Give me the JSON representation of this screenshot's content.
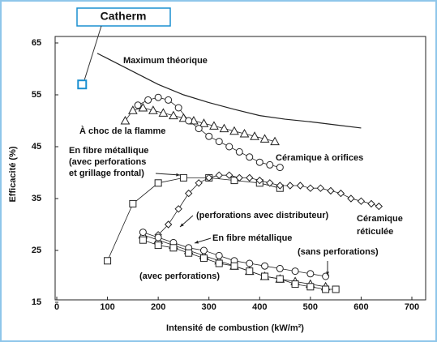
{
  "chart_data": {
    "type": "line",
    "x_label": "Intensité de combustion (kW/m²)",
    "y_label": "Efficacité  (%)",
    "xlim": [
      0,
      700
    ],
    "xticks": [
      0,
      100,
      200,
      300,
      400,
      500,
      600,
      700
    ],
    "ylim": [
      15,
      65
    ],
    "yticks": [
      15,
      25,
      35,
      45,
      55,
      65
    ],
    "highlight": {
      "name": "Catherm",
      "color": "#1a8fd0",
      "x": 50,
      "y": 57
    },
    "annotations": [
      "Maximum théorique",
      "À choc de la flamme",
      "Céramique à orifices",
      "En fibre métallique",
      "(avec perforations",
      "et grillage frontal)",
      "(perforations avec distributeur)",
      "En fibre métallique",
      "(sans perforations)",
      "(avec perforations)",
      "Céramique",
      "réticulée"
    ],
    "series": [
      {
        "marker": "none",
        "color": "#222",
        "x": [
          80,
          100,
          150,
          200,
          250,
          300,
          350,
          400,
          450,
          500,
          550,
          600
        ],
        "values": [
          63,
          62,
          59.5,
          57,
          55,
          53.5,
          52.2,
          51,
          50.3,
          49.8,
          49.2,
          48.6
        ]
      },
      {
        "marker": "triangle",
        "color": "#222",
        "x": [
          135,
          150,
          170,
          190,
          210,
          230,
          250,
          270,
          290,
          310,
          330,
          350,
          370,
          390,
          410,
          430
        ],
        "values": [
          50,
          52,
          52.5,
          52,
          51.5,
          51,
          50.5,
          50,
          49.5,
          49,
          48.5,
          48,
          47.5,
          47,
          46.5,
          46
        ]
      },
      {
        "marker": "circle",
        "color": "#222",
        "x": [
          160,
          180,
          200,
          220,
          240,
          260,
          280,
          300,
          320,
          340,
          360,
          380,
          400,
          420,
          440
        ],
        "values": [
          53,
          54,
          54.5,
          54,
          52.5,
          50,
          48.5,
          47,
          46,
          45,
          44,
          43,
          42,
          41.5,
          41
        ]
      },
      {
        "marker": "square",
        "color": "#222",
        "x": [
          100,
          150,
          200,
          250,
          300,
          350,
          400,
          440
        ],
        "values": [
          23,
          34,
          38,
          39,
          39,
          38.5,
          38,
          37
        ]
      },
      {
        "marker": "diamond",
        "color": "#222",
        "x": [
          200,
          220,
          240,
          260,
          280,
          300,
          320,
          340,
          360,
          380,
          400,
          420,
          440,
          460,
          480,
          500,
          520,
          540,
          560,
          580,
          600,
          620,
          635
        ],
        "values": [
          28,
          30,
          33,
          36,
          38,
          39,
          39.5,
          39.5,
          39,
          39,
          38.5,
          38,
          37.5,
          37.5,
          37.5,
          37,
          37,
          36.5,
          36,
          35,
          34.5,
          34,
          33.5
        ]
      },
      {
        "marker": "triangle",
        "color": "#222",
        "x": [
          170,
          200,
          230,
          260,
          290,
          320,
          350,
          380,
          410,
          440,
          470,
          500,
          530
        ],
        "values": [
          28,
          27,
          26,
          25,
          24,
          23,
          22,
          21,
          20,
          19.5,
          19,
          18.5,
          18
        ]
      },
      {
        "marker": "circle",
        "color": "#222",
        "x": [
          170,
          200,
          230,
          260,
          290,
          320,
          350,
          380,
          410,
          440,
          470,
          500,
          530
        ],
        "values": [
          28.5,
          27.5,
          26.5,
          25.5,
          25,
          24,
          23,
          22.5,
          22,
          21.5,
          21,
          20.5,
          20
        ]
      },
      {
        "marker": "square",
        "color": "#222",
        "x": [
          170,
          200,
          230,
          260,
          290,
          320,
          350,
          380,
          410,
          440,
          470,
          500,
          530,
          550
        ],
        "values": [
          27,
          26,
          25.5,
          24.5,
          23.5,
          22.5,
          22,
          21,
          20,
          19.5,
          18.5,
          18,
          17.5,
          17.5
        ]
      }
    ]
  }
}
